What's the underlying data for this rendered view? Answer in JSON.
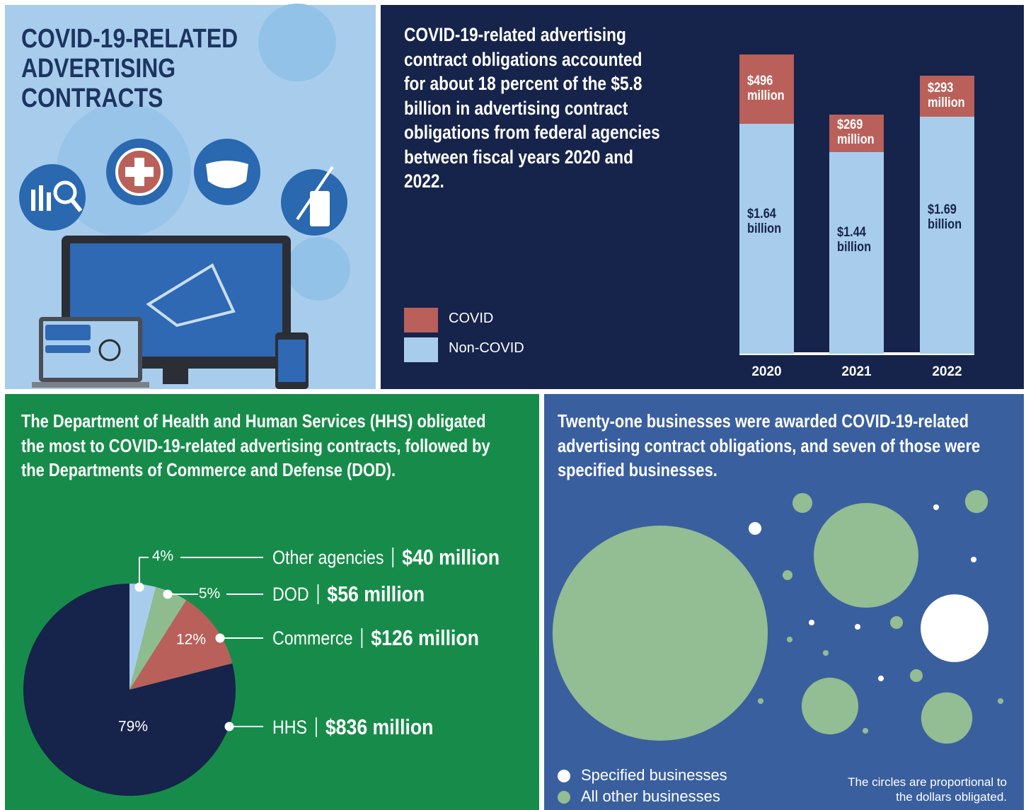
{
  "title": "COVID-19-RELATED ADVERTISING CONTRACTS",
  "chart_data": [
    {
      "type": "bar",
      "title": "COVID-19-related advertising contract obligations accounted for about 18 percent of the $5.8 billion in advertising contract obligations from federal agencies between fiscal years 2020 and 2022.",
      "categories": [
        "2020",
        "2021",
        "2022"
      ],
      "series": [
        {
          "name": "COVID",
          "color": "#b9605a",
          "values": [
            496,
            269,
            293
          ],
          "value_labels": [
            "$496 million",
            "$269 million",
            "$293 million"
          ]
        },
        {
          "name": "Non-COVID",
          "color": "#a8cdec",
          "values": [
            1640,
            1440,
            1690
          ],
          "value_labels": [
            "$1.64 billion",
            "$1.44 billion",
            "$1.69 billion"
          ]
        }
      ]
    },
    {
      "type": "pie",
      "title": "The Department of Health and Human Services (HHS) obligated the most to COVID-19-related advertising contracts, followed by the Departments of Commerce and Defense (DOD).",
      "categories": [
        "Other agencies",
        "DOD",
        "Commerce",
        "HHS"
      ],
      "values": [
        4,
        5,
        12,
        79
      ],
      "value_labels": [
        "4%",
        "5%",
        "12%",
        "79%"
      ],
      "colors": [
        "#a8cdec",
        "#8fbc8f",
        "#b9605a",
        "#16234a"
      ],
      "amounts": [
        40,
        56,
        126,
        836
      ],
      "amount_labels": [
        "$40 million",
        "$56 million",
        "$126 million",
        "$836 million"
      ]
    },
    {
      "type": "bubble",
      "title": "Twenty-one businesses were awarded COVID-19-related advertising contract obligations, and seven of those were specified businesses.",
      "series": [
        {
          "name": "Specified businesses",
          "color": "#ffffff",
          "values": [
            70,
            2.5,
            0.5,
            0.5,
            0.5,
            0.5,
            0.5
          ]
        },
        {
          "name": "All other businesses",
          "color": "#93bd92",
          "values": [
            705,
            167,
            49,
            40,
            6,
            8,
            1.5,
            2.5,
            2.5,
            0.5,
            0.5,
            0.5,
            0.5,
            0.5
          ]
        }
      ],
      "note": "The circles are proportional to the dollars obligated."
    }
  ]
}
